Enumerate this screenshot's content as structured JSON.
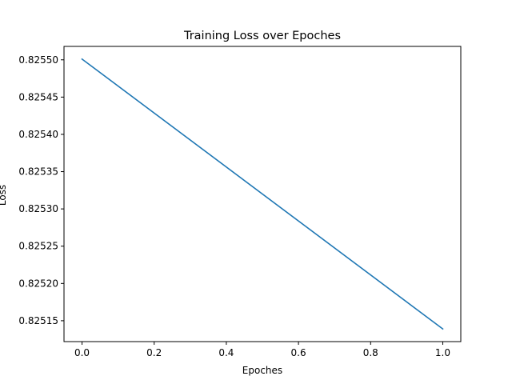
{
  "chart_data": {
    "type": "line",
    "title": "Training Loss over Epoches",
    "xlabel": "Epoches",
    "ylabel": "Loss",
    "xlim": [
      -0.05,
      1.05
    ],
    "ylim": [
      0.825122,
      0.825518
    ],
    "xticks": [
      0.0,
      0.2,
      0.4,
      0.6,
      0.8,
      1.0
    ],
    "xtick_labels": [
      "0.0",
      "0.2",
      "0.4",
      "0.6",
      "0.8",
      "1.0"
    ],
    "yticks": [
      0.82515,
      0.8252,
      0.82525,
      0.8253,
      0.82535,
      0.8254,
      0.82545,
      0.8255
    ],
    "ytick_labels": [
      "0.82515",
      "0.82520",
      "0.82525",
      "0.82530",
      "0.82535",
      "0.82540",
      "0.82545",
      "0.82550"
    ],
    "grid": false,
    "series": [
      {
        "x": [
          0,
          1
        ],
        "values": [
          0.825501,
          0.825139
        ],
        "color": "#1f77b4"
      }
    ]
  }
}
